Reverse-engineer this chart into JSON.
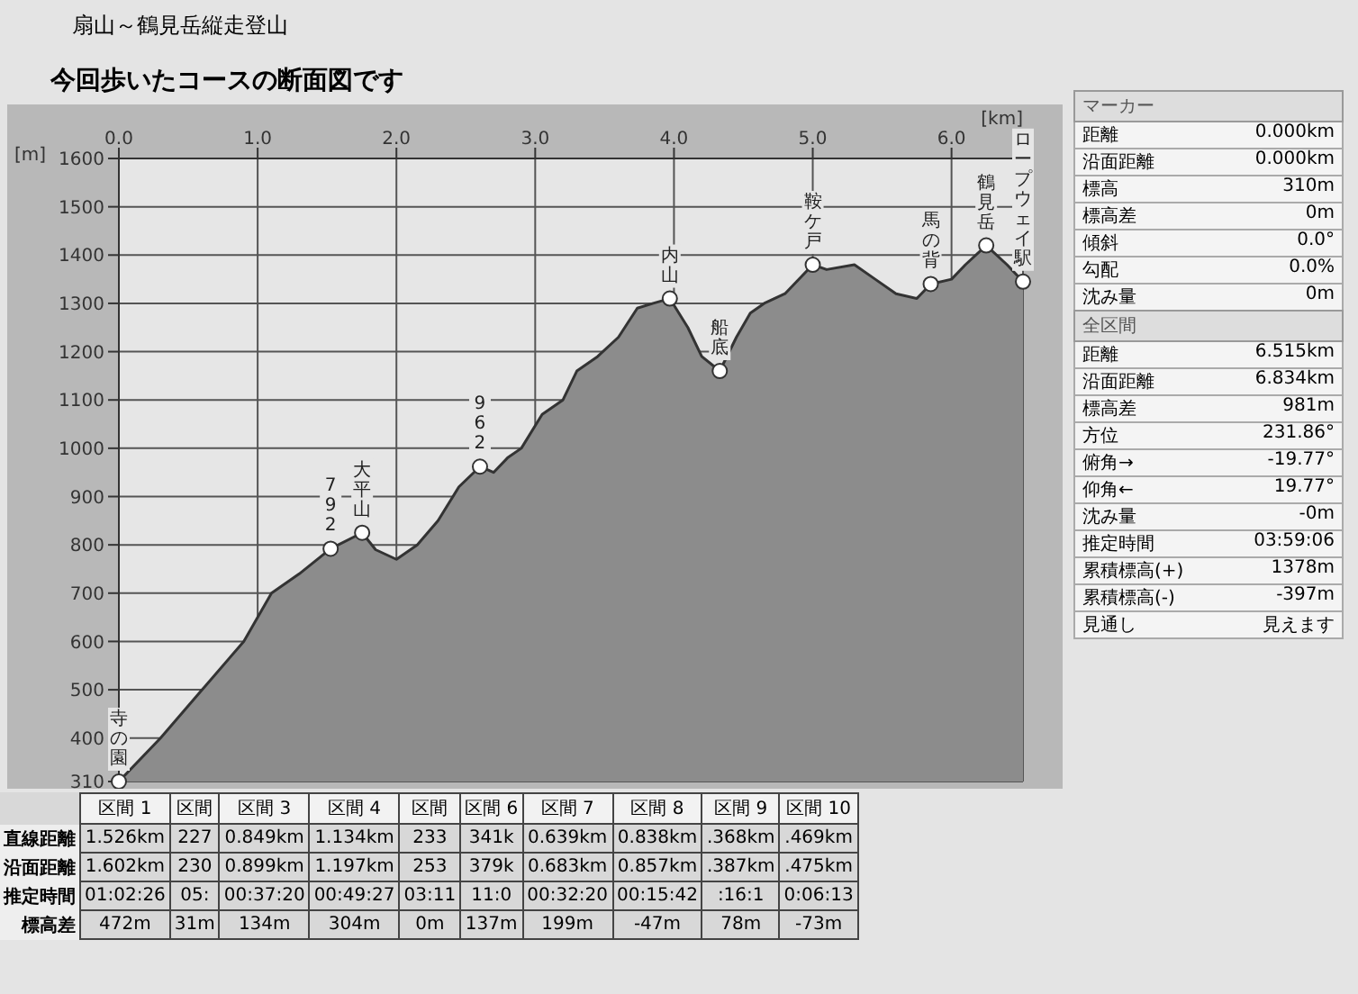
{
  "chart_data": [
    {
      "type": "area",
      "title": "扇山～鶴見岳縦走登山",
      "subtitle": "今回歩いたコースの断面図です",
      "xlabel": "[km]",
      "ylabel": "[m]",
      "color": "#8c8c8c",
      "grid": true,
      "x": [
        0,
        0.3,
        0.6,
        0.9,
        1.1,
        1.3,
        1.526,
        1.753,
        1.85,
        2.0,
        2.15,
        2.3,
        2.45,
        2.602,
        2.7,
        2.8,
        2.9,
        3.05,
        3.2,
        3.3,
        3.45,
        3.6,
        3.736,
        3.85,
        3.97,
        4.1,
        4.2,
        4.33,
        4.45,
        4.55,
        4.65,
        4.8,
        5.0,
        5.1,
        5.3,
        5.45,
        5.6,
        5.75,
        5.85,
        6.0,
        6.1,
        6.25,
        6.4,
        6.515
      ],
      "values": [
        310,
        400,
        500,
        600,
        700,
        740,
        792,
        825,
        790,
        770,
        800,
        850,
        920,
        962,
        950,
        980,
        1000,
        1070,
        1100,
        1160,
        1190,
        1230,
        1290,
        1300,
        1310,
        1250,
        1190,
        1160,
        1230,
        1280,
        1300,
        1320,
        1380,
        1370,
        1380,
        1350,
        1320,
        1310,
        1340,
        1350,
        1380,
        1420,
        1380,
        1345
      ],
      "xlim": [
        0,
        6.515
      ],
      "xticks": [
        {
          "value": 0,
          "label": "0.0"
        },
        {
          "value": 1,
          "label": "1.0"
        },
        {
          "value": 2,
          "label": "2.0"
        },
        {
          "value": 3,
          "label": "3.0"
        },
        {
          "value": 4,
          "label": "4.0"
        },
        {
          "value": 5,
          "label": "5.0"
        },
        {
          "value": 6,
          "label": "6.0"
        }
      ],
      "ylim": [
        310,
        1600
      ],
      "yticks": [
        310,
        400,
        500,
        600,
        700,
        800,
        900,
        1000,
        1100,
        1200,
        1300,
        1400,
        1500,
        1600
      ],
      "annotations": [
        {
          "text": "寺の園",
          "x": 0,
          "y": 310
        },
        {
          "text": "792",
          "x": 1.526,
          "y": 792
        },
        {
          "text": "大平山",
          "x": 1.753,
          "y": 825
        },
        {
          "text": "962",
          "x": 2.602,
          "y": 962
        },
        {
          "text": "内山",
          "x": 3.97,
          "y": 1310
        },
        {
          "text": "船底",
          "x": 4.33,
          "y": 1160
        },
        {
          "text": "鞍ケ戸",
          "x": 5.0,
          "y": 1380
        },
        {
          "text": "馬の背",
          "x": 5.85,
          "y": 1340
        },
        {
          "text": "鶴見岳",
          "x": 6.25,
          "y": 1420
        },
        {
          "text": "ロープウェイ駅",
          "x": 6.515,
          "y": 1345
        }
      ]
    },
    {
      "type": "other",
      "annotations": [
        "直線距離",
        "沿面距離",
        "推定時間",
        "標高差",
        "区間 1",
        "1.526km",
        "1.602km",
        "01:02:26",
        "472m",
        "区間",
        "227",
        "230",
        "05:",
        "31m",
        "区間 3",
        "0.849km",
        "0.899km",
        "00:37:20",
        "134m",
        "区間 4",
        "1.134km",
        "1.197km",
        "00:49:27",
        "304m",
        "区間",
        "233",
        "253",
        "03:11",
        "0m",
        "区間 6",
        "341k",
        "379k",
        "11:0",
        "137m",
        "区間 7",
        "0.639km",
        "0.683km",
        "00:32:20",
        "199m",
        "区間 8",
        "0.838km",
        "0.857km",
        "00:15:42",
        "-47m",
        "区間 9",
        ".368km",
        ".387km",
        ":16:1",
        "78m",
        "区間 10",
        ".469km",
        ".475km",
        "0:06:13",
        "-73m"
      ]
    },
    {
      "type": "other",
      "title": "マーカー",
      "annotations": [
        "距離",
        "0.000km",
        "沿面距離",
        "0.000km",
        "標高",
        "310m",
        "標高差",
        "0m",
        "傾斜",
        "0.0°",
        "勾配",
        "0.0%",
        "沈み量",
        "0m"
      ]
    },
    {
      "type": "other",
      "title": "全区間",
      "annotations": [
        "距離",
        "6.515km",
        "沿面距離",
        "6.834km",
        "標高差",
        "981m",
        "方位",
        "231.86°",
        "俯角→",
        "-19.77°",
        "仰角←",
        "19.77°",
        "沈み量",
        "-0m",
        "推定時間",
        "03:59:06",
        "累積標高(+)",
        "1378m",
        "累積標高(-)",
        "-397m",
        "見通し",
        "見えます"
      ]
    }
  ]
}
